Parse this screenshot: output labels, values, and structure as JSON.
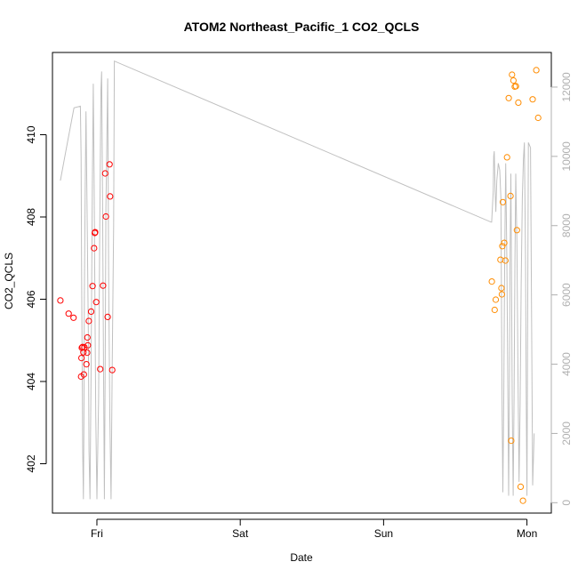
{
  "chart_data": {
    "type": "scatter",
    "title": "ATOM2 Northeast_Pacific_1 CO2_QCLS",
    "xlabel": "Date",
    "ylabel": "CO2_QCLS",
    "x_ticks": [
      "Fri",
      "Sat",
      "Sun",
      "Mon"
    ],
    "x_tick_positions": [
      1,
      2,
      3,
      4
    ],
    "xlim": [
      0.69,
      4.17
    ],
    "ylim": [
      400.8,
      412.0
    ],
    "y_ticks": [
      402,
      404,
      406,
      408,
      410
    ],
    "y2_ticks": [
      0,
      2000,
      4000,
      6000,
      8000,
      10000,
      12000
    ],
    "y2lim": [
      -300,
      13000
    ],
    "grid": false,
    "legend": "none",
    "series": [
      {
        "color": "#ff0000",
        "points": [
          [
            0.745,
            405.97
          ],
          [
            0.803,
            405.65
          ],
          [
            0.837,
            405.55
          ],
          [
            0.89,
            404.12
          ],
          [
            0.892,
            404.57
          ],
          [
            0.895,
            404.82
          ],
          [
            0.9,
            404.84
          ],
          [
            0.906,
            404.71
          ],
          [
            0.909,
            404.17
          ],
          [
            0.913,
            404.83
          ],
          [
            0.927,
            404.42
          ],
          [
            0.932,
            404.7
          ],
          [
            0.934,
            405.07
          ],
          [
            0.937,
            404.88
          ],
          [
            0.944,
            405.47
          ],
          [
            0.96,
            405.7
          ],
          [
            0.995,
            405.93
          ],
          [
            0.97,
            406.32
          ],
          [
            0.98,
            407.24
          ],
          [
            0.985,
            407.61
          ],
          [
            0.988,
            407.63
          ],
          [
            1.023,
            404.3
          ],
          [
            1.043,
            406.33
          ],
          [
            1.058,
            409.06
          ],
          [
            1.063,
            408.01
          ],
          [
            1.075,
            405.57
          ],
          [
            1.088,
            409.28
          ],
          [
            1.092,
            408.5
          ],
          [
            1.107,
            404.28
          ]
        ]
      },
      {
        "color": "#ff8c00",
        "points": [
          [
            3.755,
            406.43
          ],
          [
            3.775,
            405.74
          ],
          [
            3.782,
            405.99
          ],
          [
            3.815,
            406.96
          ],
          [
            3.822,
            406.27
          ],
          [
            3.825,
            406.12
          ],
          [
            3.828,
            407.29
          ],
          [
            3.832,
            408.36
          ],
          [
            3.842,
            407.37
          ],
          [
            3.85,
            406.94
          ],
          [
            3.861,
            409.45
          ],
          [
            3.873,
            410.89
          ],
          [
            3.885,
            408.51
          ],
          [
            3.89,
            402.56
          ],
          [
            3.896,
            411.46
          ],
          [
            3.906,
            411.32
          ],
          [
            3.915,
            411.17
          ],
          [
            3.923,
            411.18
          ],
          [
            3.93,
            407.68
          ],
          [
            3.94,
            410.78
          ],
          [
            3.956,
            401.44
          ],
          [
            3.972,
            401.1
          ],
          [
            4.04,
            410.86
          ],
          [
            4.065,
            411.57
          ],
          [
            4.078,
            410.41
          ]
        ]
      }
    ],
    "altitude": {
      "axis": "right",
      "color": "#c0c0c0",
      "x": [
        0.745,
        0.79,
        0.84,
        0.885,
        0.89,
        0.893,
        0.897,
        0.901,
        0.906,
        0.909,
        0.913,
        0.918,
        0.924,
        0.93,
        0.94,
        0.945,
        0.952,
        0.96,
        0.968,
        0.975,
        0.98,
        0.986,
        0.992,
        1.0,
        1.012,
        1.02,
        1.028,
        1.033,
        1.04,
        1.046,
        1.052,
        1.058,
        1.063,
        1.068,
        1.075,
        1.082,
        1.09,
        1.099,
        1.107,
        1.117,
        1.122,
        3.75,
        3.754,
        3.765,
        3.768,
        3.772,
        3.778,
        3.783,
        3.79,
        3.8,
        3.81,
        3.818,
        3.822,
        3.827,
        3.832,
        3.838,
        3.845,
        3.852,
        3.86,
        3.867,
        3.872,
        3.877,
        3.882,
        3.888,
        3.892,
        3.897,
        3.904,
        3.91,
        3.916,
        3.922,
        3.93,
        3.937,
        3.945,
        3.952,
        3.96,
        3.968,
        3.975,
        3.982,
        3.99,
        3.995,
        4.0,
        4.01,
        4.025,
        4.04,
        4.05
      ],
      "y": [
        9300,
        10300,
        11400,
        11450,
        10000,
        7000,
        4000,
        1500,
        100,
        2000,
        6000,
        9000,
        11300,
        9000,
        5000,
        1500,
        100,
        4000,
        9000,
        12100,
        9500,
        6000,
        2500,
        100,
        3000,
        8000,
        11900,
        12450,
        8500,
        4000,
        100,
        4000,
        8500,
        9900,
        12250,
        6500,
        2500,
        100,
        4000,
        8000,
        12750,
        8100,
        8100,
        9000,
        10000,
        10150,
        9000,
        8400,
        9300,
        9800,
        9600,
        8800,
        6000,
        2500,
        300,
        3000,
        7200,
        9800,
        7000,
        3000,
        200,
        3000,
        7200,
        9500,
        6800,
        3000,
        200,
        3000,
        7000,
        9500,
        7500,
        4000,
        600,
        2800,
        6300,
        8800,
        9900,
        10400,
        7000,
        3000,
        200,
        10400,
        10250,
        500,
        2000
      ]
    }
  }
}
